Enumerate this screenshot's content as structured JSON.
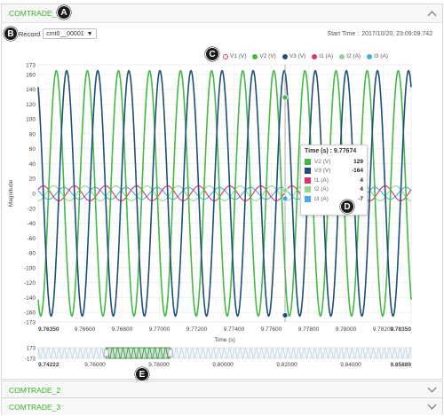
{
  "panels": [
    {
      "title": "COMTRADE_1",
      "expanded": true
    },
    {
      "title": "COMTRADE_2",
      "expanded": false
    },
    {
      "title": "COMTRADE_3",
      "expanded": false
    }
  ],
  "callouts": {
    "a": "A",
    "b": "B",
    "c": "C",
    "d": "D",
    "e": "E"
  },
  "record": {
    "label": "Record",
    "selected": "cmt0__00001"
  },
  "start_time": {
    "label": "Start Time :",
    "value": "2017/10/20, 23:09:09.742"
  },
  "colors": {
    "V1": "#d83a5e",
    "V2": "#44b844",
    "V3": "#1f4f78",
    "I1": "#e0306f",
    "I2": "#8fd68f",
    "I3": "#45aee0"
  },
  "tooltip": {
    "title": "Time (s) : 9.77674",
    "rows": [
      {
        "name": "V2 (V)",
        "value": "129",
        "color": "#44b844"
      },
      {
        "name": "V3 (V)",
        "value": "-164",
        "color": "#1f4f78"
      },
      {
        "name": "I1 (A)",
        "value": "4",
        "color": "#e0306f"
      },
      {
        "name": "I2 (A)",
        "value": "4",
        "color": "#8fd68f"
      },
      {
        "name": "I3 (A)",
        "value": "-7",
        "color": "#45aee0"
      }
    ]
  },
  "chart_data": {
    "type": "line",
    "xlabel": "Time (s)",
    "ylabel": "Magnitude",
    "xlim": [
      9.7635,
      9.7835
    ],
    "ylim": [
      -173,
      173
    ],
    "x_ticks": [
      "9.76350",
      "9.76600",
      "9.76800",
      "9.77000",
      "9.77200",
      "9.77400",
      "9.77600",
      "9.77800",
      "9.78000",
      "9.78200",
      "9.78350"
    ],
    "y_ticks": [
      "173",
      "160",
      "140",
      "120",
      "100",
      "80",
      "60",
      "40",
      "20",
      "0",
      "-20",
      "-40",
      "-60",
      "-80",
      "-100",
      "-120",
      "-140",
      "-160",
      "-173"
    ],
    "frequency_hz": 600,
    "series": [
      {
        "name": "V1 (V)",
        "amplitude": 165,
        "phase_deg": 0,
        "visible": false
      },
      {
        "name": "V2 (V)",
        "amplitude": 165,
        "phase_deg": -120,
        "visible": true
      },
      {
        "name": "V3 (V)",
        "amplitude": 165,
        "phase_deg": 120,
        "visible": true
      },
      {
        "name": "I1 (A)",
        "amplitude": 10,
        "phase_deg": 30,
        "visible": true
      },
      {
        "name": "I2 (A)",
        "amplitude": 10,
        "phase_deg": -90,
        "visible": true
      },
      {
        "name": "I3 (A)",
        "amplitude": 8,
        "phase_deg": 150,
        "visible": true
      }
    ],
    "crosshair_x": 9.77674,
    "navigator": {
      "range": [
        9.74222,
        9.85889
      ],
      "y_ticks": [
        "173",
        "-173"
      ],
      "x_ticks": [
        "9.74222",
        "9.76000",
        "9.78000",
        "9.80000",
        "9.82000",
        "9.84000",
        "9.85889"
      ],
      "selection": [
        9.7635,
        9.7835
      ]
    }
  }
}
